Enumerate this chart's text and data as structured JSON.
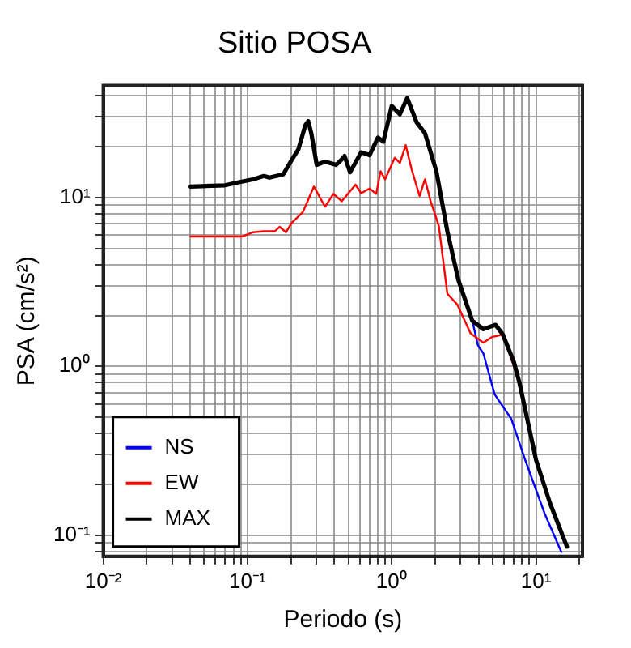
{
  "chart_data": {
    "type": "line",
    "title": "Sitio POSA",
    "xlabel": "Periodo (s)",
    "ylabel": "PSA (cm/s²)",
    "log": "xy",
    "grid": true,
    "legend": "bottom left",
    "marker": "none",
    "line_style": "solid",
    "xlim": [
      0.01,
      21
    ],
    "ylim": [
      0.075,
      46
    ],
    "xticks": [
      {
        "value": 0.01,
        "label": "10⁻²"
      },
      {
        "value": 0.02,
        "label": null
      },
      {
        "value": 0.03,
        "label": null
      },
      {
        "value": 0.04,
        "label": null
      },
      {
        "value": 0.05,
        "label": null
      },
      {
        "value": 0.06,
        "label": null
      },
      {
        "value": 0.07,
        "label": null
      },
      {
        "value": 0.08,
        "label": null
      },
      {
        "value": 0.09,
        "label": null
      },
      {
        "value": 0.1,
        "label": "10⁻¹"
      },
      {
        "value": 0.2,
        "label": null
      },
      {
        "value": 0.3,
        "label": null
      },
      {
        "value": 0.4,
        "label": null
      },
      {
        "value": 0.5,
        "label": null
      },
      {
        "value": 0.6,
        "label": null
      },
      {
        "value": 0.7,
        "label": null
      },
      {
        "value": 0.8,
        "label": null
      },
      {
        "value": 0.9,
        "label": null
      },
      {
        "value": 1,
        "label": "10⁰"
      },
      {
        "value": 2,
        "label": null
      },
      {
        "value": 3,
        "label": null
      },
      {
        "value": 4,
        "label": null
      },
      {
        "value": 5,
        "label": null
      },
      {
        "value": 6,
        "label": null
      },
      {
        "value": 7,
        "label": null
      },
      {
        "value": 8,
        "label": null
      },
      {
        "value": 9,
        "label": null
      },
      {
        "value": 10,
        "label": "10¹"
      },
      {
        "value": 20,
        "label": null
      }
    ],
    "yticks": [
      {
        "value": 0.08,
        "label": null
      },
      {
        "value": 0.09,
        "label": null
      },
      {
        "value": 0.1,
        "label": "10⁻¹"
      },
      {
        "value": 0.2,
        "label": null
      },
      {
        "value": 0.3,
        "label": null
      },
      {
        "value": 0.4,
        "label": null
      },
      {
        "value": 0.5,
        "label": null
      },
      {
        "value": 0.6,
        "label": null
      },
      {
        "value": 0.7,
        "label": null
      },
      {
        "value": 0.8,
        "label": null
      },
      {
        "value": 0.9,
        "label": null
      },
      {
        "value": 1,
        "label": "10⁰"
      },
      {
        "value": 2,
        "label": null
      },
      {
        "value": 3,
        "label": null
      },
      {
        "value": 4,
        "label": null
      },
      {
        "value": 5,
        "label": null
      },
      {
        "value": 6,
        "label": null
      },
      {
        "value": 7,
        "label": null
      },
      {
        "value": 8,
        "label": null
      },
      {
        "value": 9,
        "label": null
      },
      {
        "value": 10,
        "label": "10¹"
      },
      {
        "value": 20,
        "label": null
      },
      {
        "value": 30,
        "label": null
      },
      {
        "value": 40,
        "label": null
      }
    ],
    "series": [
      {
        "name": "NS",
        "color": "#0000ff",
        "x": [
          3.62,
          3.96,
          4.32,
          5.17,
          6.74,
          8.41,
          11.5,
          15.0
        ],
        "values": [
          1.86,
          1.33,
          1.19,
          0.682,
          0.489,
          0.28,
          0.134,
          0.0795
        ]
      },
      {
        "name": "EW",
        "color": "#ff0000",
        "x": [
          0.0403,
          0.0912,
          0.109,
          0.13,
          0.155,
          0.167,
          0.185,
          0.202,
          0.242,
          0.289,
          0.345,
          0.394,
          0.45,
          0.561,
          0.614,
          0.702,
          0.781,
          0.837,
          0.899,
          1.05,
          1.14,
          1.25,
          1.37,
          1.56,
          1.7,
          1.86,
          2.12,
          2.43,
          2.85,
          3.52,
          4.32,
          4.94,
          5.9,
          7.03
        ],
        "values": [
          5.87,
          5.87,
          6.22,
          6.31,
          6.31,
          6.7,
          6.22,
          7.05,
          8.19,
          11.6,
          8.81,
          10.5,
          9.5,
          11.9,
          10.6,
          11.3,
          10.5,
          14.3,
          12.8,
          17.2,
          16.0,
          20.4,
          14.8,
          10.2,
          12.8,
          9.5,
          6.81,
          2.69,
          2.32,
          1.57,
          1.38,
          1.49,
          1.54,
          0.995
        ]
      },
      {
        "name": "MAX",
        "color": "#000000",
        "x": [
          0.0403,
          0.0698,
          0.0871,
          0.109,
          0.13,
          0.142,
          0.177,
          0.202,
          0.225,
          0.252,
          0.264,
          0.277,
          0.302,
          0.345,
          0.412,
          0.45,
          0.471,
          0.514,
          0.614,
          0.702,
          0.802,
          0.875,
          1.0,
          1.14,
          1.28,
          1.49,
          1.7,
          2.04,
          2.43,
          2.9,
          3.62,
          4.32,
          5.25,
          5.9,
          7.03,
          7.7,
          10.0,
          12.5,
          16.4
        ],
        "values": [
          11.6,
          11.8,
          12.3,
          12.8,
          13.4,
          13.1,
          13.7,
          16.6,
          19.2,
          26.8,
          28.3,
          24.0,
          15.6,
          16.3,
          15.6,
          16.8,
          17.6,
          14.1,
          18.5,
          17.8,
          22.6,
          21.4,
          34.8,
          31.1,
          38.8,
          27.8,
          24.0,
          14.3,
          6.31,
          3.24,
          1.86,
          1.66,
          1.76,
          1.54,
          1.06,
          0.792,
          0.28,
          0.155,
          0.0855
        ]
      }
    ]
  }
}
